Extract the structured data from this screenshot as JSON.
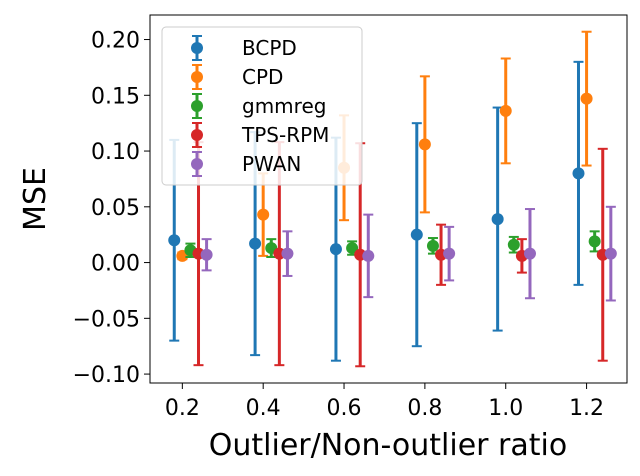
{
  "chart_data": {
    "type": "scatter",
    "title": "",
    "xlabel": "Outlier/Non-outlier ratio",
    "ylabel": "MSE",
    "xlim": [
      0.12,
      1.3
    ],
    "ylim": [
      -0.108,
      0.222
    ],
    "x": [
      0.2,
      0.4,
      0.6,
      0.8,
      1.0,
      1.2
    ],
    "x_tick_labels": [
      "0.2",
      "0.4",
      "0.6",
      "0.8",
      "1.0",
      "1.2"
    ],
    "y_ticks": [
      -0.1,
      -0.05,
      0.0,
      0.05,
      0.1,
      0.15,
      0.2
    ],
    "y_tick_labels": [
      "−0.10",
      "−0.05",
      "0.00",
      "0.05",
      "0.10",
      "0.15",
      "0.20"
    ],
    "legend_position": "top-left",
    "series": [
      {
        "name": "BCPD",
        "color": "#1f77b4",
        "offset": -0.02,
        "values": [
          0.02,
          0.017,
          0.012,
          0.025,
          0.039,
          0.08
        ],
        "errors": [
          0.09,
          0.1,
          0.1,
          0.1,
          0.1,
          0.1
        ]
      },
      {
        "name": "CPD",
        "color": "#ff7f0e",
        "offset": 0.0,
        "values": [
          0.006,
          0.043,
          0.085,
          0.106,
          0.136,
          0.147
        ],
        "errors": [
          0.003,
          0.037,
          0.047,
          0.061,
          0.047,
          0.06
        ]
      },
      {
        "name": "gmmreg",
        "color": "#2ca02c",
        "offset": 0.02,
        "values": [
          0.011,
          0.013,
          0.013,
          0.015,
          0.016,
          0.019
        ],
        "errors": [
          0.006,
          0.008,
          0.006,
          0.007,
          0.007,
          0.009
        ]
      },
      {
        "name": "TPS-RPM",
        "color": "#d62728",
        "offset": 0.04,
        "values": [
          0.008,
          0.008,
          0.007,
          0.007,
          0.006,
          0.007
        ],
        "errors": [
          0.1,
          0.1,
          0.1,
          0.027,
          0.015,
          0.095
        ]
      },
      {
        "name": "PWAN",
        "color": "#9467bd",
        "offset": 0.06,
        "values": [
          0.007,
          0.008,
          0.006,
          0.008,
          0.008,
          0.008
        ],
        "errors": [
          0.014,
          0.02,
          0.037,
          0.024,
          0.04,
          0.042
        ]
      }
    ]
  }
}
